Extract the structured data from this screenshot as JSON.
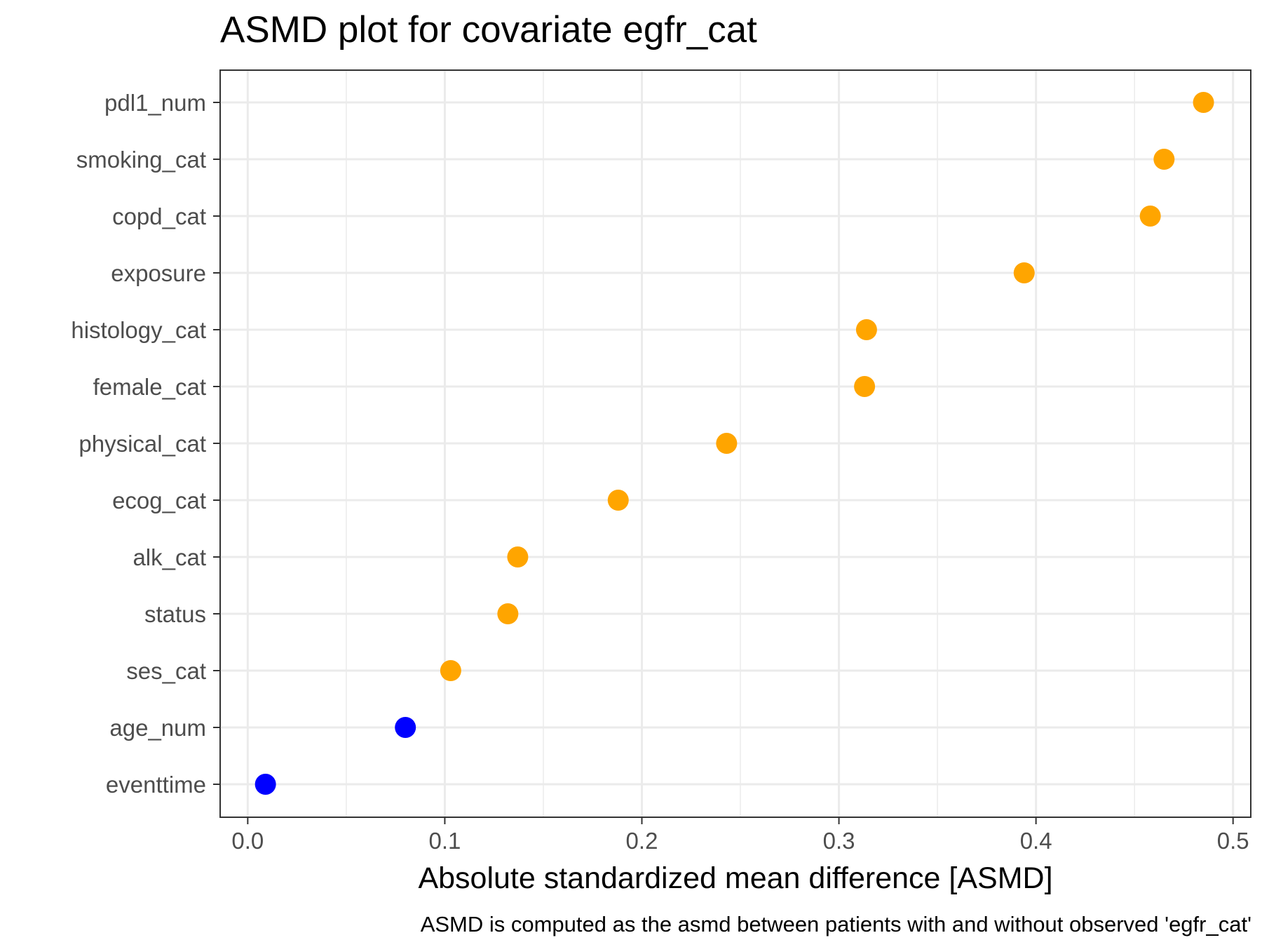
{
  "chart_data": {
    "type": "scatter",
    "title": "ASMD plot for covariate egfr_cat",
    "xlabel": "Absolute standardized mean difference [ASMD]",
    "ylabel": "",
    "caption": "ASMD is computed as the asmd between patients with and without observed 'egfr_cat'",
    "xlim": [
      -0.014,
      0.509
    ],
    "x_ticks": [
      0.0,
      0.1,
      0.2,
      0.3,
      0.4,
      0.5
    ],
    "x_tick_labels": [
      "0.0",
      "0.1",
      "0.2",
      "0.3",
      "0.4",
      "0.5"
    ],
    "x_minor_ticks": [
      0.05,
      0.15,
      0.25,
      0.35,
      0.45
    ],
    "categories": [
      "pdl1_num",
      "smoking_cat",
      "copd_cat",
      "exposure",
      "histology_cat",
      "female_cat",
      "physical_cat",
      "ecog_cat",
      "alk_cat",
      "status",
      "ses_cat",
      "age_num",
      "eventtime"
    ],
    "values": [
      0.485,
      0.465,
      0.458,
      0.394,
      0.314,
      0.313,
      0.243,
      0.188,
      0.137,
      0.132,
      0.103,
      0.08,
      0.009
    ],
    "point_colors": [
      "#FFA500",
      "#FFA500",
      "#FFA500",
      "#FFA500",
      "#FFA500",
      "#FFA500",
      "#FFA500",
      "#FFA500",
      "#FFA500",
      "#FFA500",
      "#FFA500",
      "#0000FF",
      "#0000FF"
    ],
    "grid": true,
    "legend": "none"
  },
  "colors": {
    "above_threshold": "#FFA500",
    "below_threshold": "#0000FF",
    "grid_major": "#EBEBEB",
    "panel_border": "#333333"
  }
}
